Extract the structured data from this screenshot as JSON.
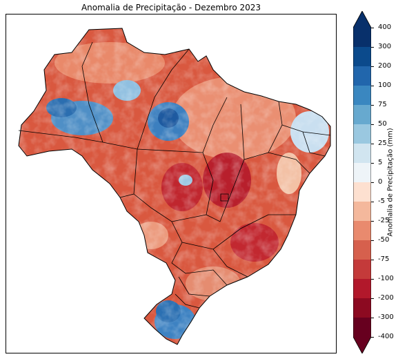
{
  "title": "Anomalia de Precipitação - Dezembro 2023",
  "colorbar": {
    "label": "Anomalia de Precipitação (mm)",
    "ticks": [
      "400",
      "300",
      "200",
      "100",
      "75",
      "50",
      "25",
      "5",
      "0",
      "-5",
      "-25",
      "-50",
      "-75",
      "-100",
      "-200",
      "-300",
      "-400"
    ],
    "colors": [
      "#08306b",
      "#0b4a8c",
      "#2166ac",
      "#3a87c0",
      "#67a9cf",
      "#9ac8e0",
      "#d1e5f0",
      "#eef4f8",
      "#fdf9f5",
      "#fde0d0",
      "#f4b89c",
      "#e98a6e",
      "#d6604d",
      "#c43a3a",
      "#b2182b",
      "#8c0a21",
      "#67001f"
    ]
  },
  "map": {
    "region": "Brasil",
    "color_scale": "RdBu"
  }
}
